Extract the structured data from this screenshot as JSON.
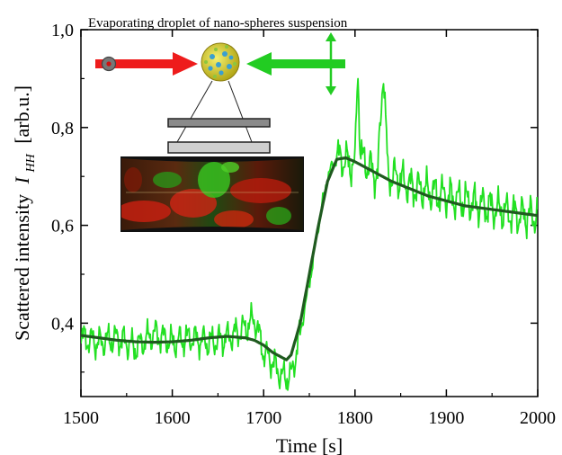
{
  "chart_data": {
    "type": "line",
    "title": "",
    "xlabel": "Time [s]",
    "ylabel": {
      "prefix": "Scattered intensity",
      "symbol": "I",
      "subscript": "HH",
      "unit": "[arb.u.]"
    },
    "xlim": [
      1500,
      2000
    ],
    "ylim": [
      0.25,
      1.0
    ],
    "x_ticks": [
      1500,
      1600,
      1700,
      1800,
      1900,
      2000
    ],
    "x_tick_labels": [
      "1500",
      "1600",
      "1700",
      "1800",
      "1900",
      "2000"
    ],
    "y_ticks": [
      0.4,
      0.6,
      0.8,
      1.0
    ],
    "y_tick_labels": [
      "0,4",
      "0,6",
      "0,8",
      "1,0"
    ],
    "series": [
      {
        "name": "",
        "color": "#22e022",
        "style": "noisy measured trace",
        "x": [
          1500,
          1520,
          1540,
          1560,
          1580,
          1600,
          1620,
          1640,
          1660,
          1680,
          1690,
          1700,
          1710,
          1720,
          1730,
          1740,
          1750,
          1760,
          1770,
          1780,
          1790,
          1800,
          1803,
          1806,
          1815,
          1825,
          1831,
          1836,
          1845,
          1860,
          1880,
          1900,
          1920,
          1940,
          1960,
          1980,
          2000
        ],
        "y": [
          0.37,
          0.36,
          0.37,
          0.35,
          0.38,
          0.36,
          0.37,
          0.36,
          0.37,
          0.39,
          0.41,
          0.34,
          0.32,
          0.29,
          0.29,
          0.38,
          0.48,
          0.6,
          0.7,
          0.74,
          0.73,
          0.72,
          0.93,
          0.74,
          0.72,
          0.7,
          0.93,
          0.7,
          0.7,
          0.68,
          0.67,
          0.66,
          0.65,
          0.64,
          0.63,
          0.62,
          0.62
        ]
      },
      {
        "name": "",
        "color": "#1f5a1f",
        "style": "smooth fit",
        "x": [
          1500,
          1520,
          1540,
          1560,
          1580,
          1600,
          1620,
          1640,
          1660,
          1680,
          1690,
          1700,
          1710,
          1720,
          1725,
          1730,
          1740,
          1750,
          1760,
          1770,
          1780,
          1790,
          1800,
          1820,
          1840,
          1860,
          1880,
          1900,
          1920,
          1940,
          1960,
          1980,
          2000
        ],
        "y": [
          0.375,
          0.37,
          0.365,
          0.362,
          0.361,
          0.362,
          0.365,
          0.37,
          0.373,
          0.37,
          0.365,
          0.355,
          0.34,
          0.33,
          0.325,
          0.335,
          0.4,
          0.5,
          0.6,
          0.69,
          0.735,
          0.738,
          0.73,
          0.71,
          0.69,
          0.675,
          0.66,
          0.65,
          0.64,
          0.635,
          0.63,
          0.625,
          0.62
        ]
      }
    ],
    "grid": false,
    "legend": "none"
  },
  "inset": {
    "title": "Evaporating droplet of nano-spheres suspension",
    "colors": {
      "left_beam": "#ee1c1c",
      "right_beam": "#22cc22",
      "droplet": "#d8d020",
      "film_dark": "#1a1a1a"
    },
    "icons": [
      "polarization-dot-icon",
      "droplet-icon",
      "double-arrow-icon"
    ]
  }
}
